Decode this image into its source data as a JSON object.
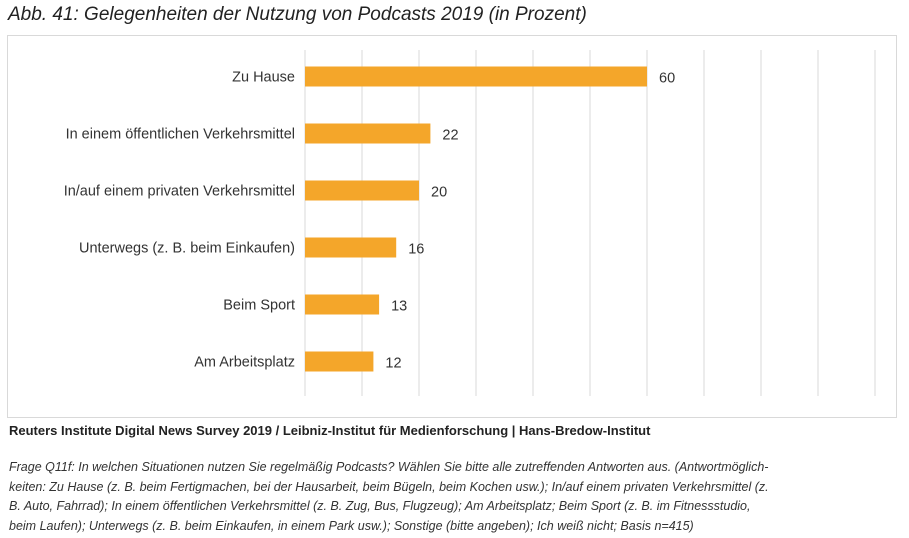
{
  "title": "Abb. 41:  Gelegenheiten der Nutzung von Podcasts 2019 (in Prozent)",
  "source": "Reuters Institute Digital News Survey 2019 / Leibniz-Institut für Medienforschung | Hans-Bredow-Institut",
  "note_lines": [
    "Frage Q11f: In welchen Situationen nutzen Sie regelmäßig Podcasts? Wählen Sie bitte alle zutreffenden Antworten aus. (Antwortmöglich-",
    "keiten: Zu Hause (z. B. beim Fertigmachen, bei der Hausarbeit, beim Bügeln, beim Kochen usw.); In/auf einem privaten Verkehrsmittel (z.",
    "B. Auto, Fahrrad); In einem öffentlichen Verkehrsmittel (z. B. Zug, Bus, Flugzeug); Am Arbeitsplatz; Beim Sport (z. B. im Fitnessstudio,",
    "beim Laufen); Unterwegs (z. B. beim Einkaufen, in einem Park usw.); Sonstige (bitte angeben); Ich weiß nicht; Basis n=415)"
  ],
  "colors": {
    "bar": "#f4a62a",
    "grid": "#d9d9d9"
  },
  "chart_data": {
    "type": "bar",
    "orientation": "horizontal",
    "categories": [
      "Zu Hause",
      "In einem öffentlichen Verkehrsmittel",
      "In/auf einem privaten Verkehrsmittel",
      "Unterwegs (z. B. beim Einkaufen)",
      "Beim Sport",
      "Am Arbeitsplatz"
    ],
    "values": [
      60,
      22,
      20,
      16,
      13,
      12
    ],
    "title": "Gelegenheiten der Nutzung von Podcasts 2019 (in Prozent)",
    "xlabel": "",
    "ylabel": "",
    "xlim": [
      0,
      100
    ],
    "grid": true,
    "gridlines": [
      0,
      10,
      20,
      30,
      40,
      50,
      60,
      70,
      80,
      90,
      100
    ],
    "data_labels": true,
    "legend": false
  }
}
